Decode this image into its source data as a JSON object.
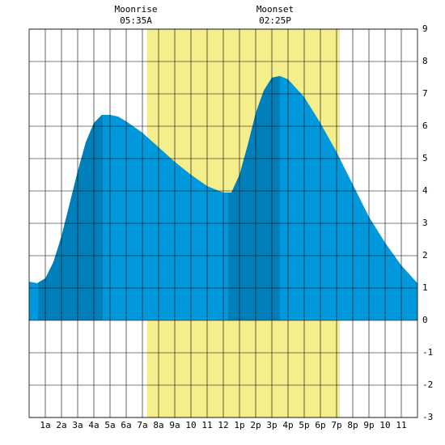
{
  "chart_data": {
    "type": "area",
    "annotations": [
      {
        "title": "Moonrise",
        "time": "05:35A",
        "at": 6.6
      },
      {
        "title": "Moonset",
        "time": "02:25P",
        "at": 15.2
      }
    ],
    "x": [
      0,
      0.5,
      1,
      1.5,
      2,
      2.5,
      3,
      3.5,
      4,
      4.5,
      5,
      5.5,
      6,
      7,
      8,
      9,
      10,
      11,
      12,
      12.5,
      13,
      13.5,
      14,
      14.5,
      15,
      15.5,
      16,
      17,
      18,
      19,
      20,
      21,
      22,
      23,
      24
    ],
    "values": [
      1.2,
      1.15,
      1.3,
      1.8,
      2.6,
      3.6,
      4.6,
      5.5,
      6.1,
      6.35,
      6.35,
      6.3,
      6.15,
      5.8,
      5.35,
      4.9,
      4.5,
      4.15,
      3.95,
      3.95,
      4.5,
      5.4,
      6.4,
      7.1,
      7.5,
      7.55,
      7.45,
      6.9,
      6.1,
      5.2,
      4.2,
      3.2,
      2.4,
      1.7,
      1.15
    ],
    "color": "#0099dd",
    "highlight_spans": [
      [
        0.55,
        4.55
      ],
      [
        12.3,
        15.5
      ]
    ],
    "highlight_color": "#0080bb",
    "daylight": [
      7.3,
      19.2
    ],
    "daylight_color": "#f5ee8c",
    "xlim": [
      0,
      24
    ],
    "xticks": [
      {
        "value": 1,
        "label": "1a"
      },
      {
        "value": 2,
        "label": "2a"
      },
      {
        "value": 3,
        "label": "3a"
      },
      {
        "value": 4,
        "label": "4a"
      },
      {
        "value": 5,
        "label": "5a"
      },
      {
        "value": 6,
        "label": "6a"
      },
      {
        "value": 7,
        "label": "7a"
      },
      {
        "value": 8,
        "label": "8a"
      },
      {
        "value": 9,
        "label": "9a"
      },
      10,
      11,
      12,
      {
        "value": 13,
        "label": "1p"
      },
      {
        "value": 14,
        "label": "2p"
      },
      {
        "value": 15,
        "label": "3p"
      },
      {
        "value": 16,
        "label": "4p"
      },
      {
        "value": 17,
        "label": "5p"
      },
      {
        "value": 18,
        "label": "6p"
      },
      {
        "value": 19,
        "label": "7p"
      },
      {
        "value": 20,
        "label": "8p"
      },
      {
        "value": 21,
        "label": "9p"
      },
      {
        "value": 22,
        "label": "10"
      },
      {
        "value": 23,
        "label": "11"
      }
    ],
    "ylim": [
      -3,
      9
    ],
    "yticks": [
      -3,
      -2,
      -1,
      0,
      1,
      2,
      3,
      4,
      5,
      6,
      7,
      8,
      9
    ],
    "grid": true
  }
}
